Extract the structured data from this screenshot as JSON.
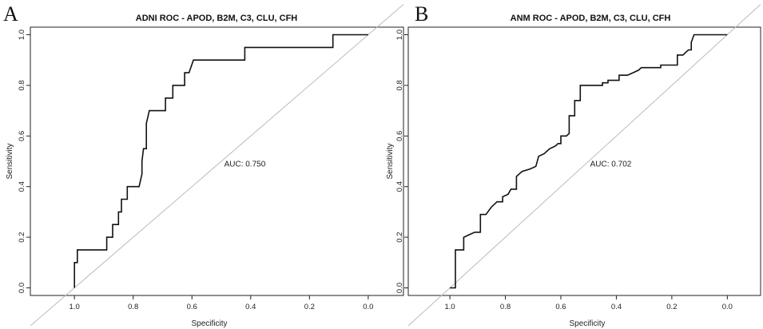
{
  "chart_data": [
    {
      "panel": "A",
      "type": "line",
      "title": "ADNI ROC - APOD, B2M, C3, CLU, CFH",
      "xlabel": "Specificity",
      "ylabel": "Sensitivity",
      "xlim": [
        1.15,
        -0.12
      ],
      "ylim": [
        -0.03,
        1.03
      ],
      "xticks": [
        1.0,
        0.8,
        0.6,
        0.4,
        0.2,
        0.0
      ],
      "xtick_labels": [
        "1.0",
        "0.8",
        "0.6",
        "0.4",
        "0.2",
        "0.0"
      ],
      "yticks": [
        0.0,
        0.2,
        0.4,
        0.6,
        0.8,
        1.0
      ],
      "ytick_labels": [
        "0.0",
        "0.2",
        "0.4",
        "0.6",
        "0.8",
        "1.0"
      ],
      "auc_label": "AUC: 0.750",
      "auc_position": {
        "specificity": 0.42,
        "sensitivity": 0.48
      },
      "diagonal": true,
      "series": [
        {
          "name": "ROC",
          "points": [
            [
              1.0,
              0.0
            ],
            [
              1.0,
              0.1
            ],
            [
              0.99,
              0.1
            ],
            [
              0.99,
              0.15
            ],
            [
              0.89,
              0.15
            ],
            [
              0.89,
              0.2
            ],
            [
              0.87,
              0.2
            ],
            [
              0.87,
              0.25
            ],
            [
              0.85,
              0.25
            ],
            [
              0.85,
              0.3
            ],
            [
              0.84,
              0.3
            ],
            [
              0.84,
              0.35
            ],
            [
              0.82,
              0.35
            ],
            [
              0.82,
              0.4
            ],
            [
              0.78,
              0.4
            ],
            [
              0.77,
              0.45
            ],
            [
              0.77,
              0.5
            ],
            [
              0.765,
              0.55
            ],
            [
              0.755,
              0.55
            ],
            [
              0.755,
              0.65
            ],
            [
              0.745,
              0.7
            ],
            [
              0.69,
              0.7
            ],
            [
              0.69,
              0.75
            ],
            [
              0.665,
              0.75
            ],
            [
              0.665,
              0.8
            ],
            [
              0.625,
              0.8
            ],
            [
              0.625,
              0.85
            ],
            [
              0.61,
              0.85
            ],
            [
              0.595,
              0.9
            ],
            [
              0.42,
              0.9
            ],
            [
              0.42,
              0.95
            ],
            [
              0.12,
              0.95
            ],
            [
              0.12,
              1.0
            ],
            [
              0.0,
              1.0
            ]
          ]
        }
      ]
    },
    {
      "panel": "B",
      "type": "line",
      "title": "ANM ROC - APOD, B2M, C3, CLU, CFH",
      "xlabel": "Specificity",
      "ylabel": "Sensitivity",
      "xlim": [
        1.15,
        -0.12
      ],
      "ylim": [
        -0.03,
        1.03
      ],
      "xticks": [
        1.0,
        0.8,
        0.6,
        0.4,
        0.2,
        0.0
      ],
      "xtick_labels": [
        "1.0",
        "0.8",
        "0.6",
        "0.4",
        "0.2",
        "0.0"
      ],
      "yticks": [
        0.0,
        0.2,
        0.4,
        0.6,
        0.8,
        1.0
      ],
      "ytick_labels": [
        "0.0",
        "0.2",
        "0.4",
        "0.6",
        "0.8",
        "1.0"
      ],
      "auc_label": "AUC: 0.702",
      "auc_position": {
        "specificity": 0.42,
        "sensitivity": 0.48
      },
      "diagonal": true,
      "series": [
        {
          "name": "ROC",
          "points": [
            [
              1.0,
              0.0
            ],
            [
              0.98,
              0.0
            ],
            [
              0.98,
              0.15
            ],
            [
              0.95,
              0.15
            ],
            [
              0.95,
              0.2
            ],
            [
              0.93,
              0.21
            ],
            [
              0.91,
              0.22
            ],
            [
              0.89,
              0.22
            ],
            [
              0.89,
              0.29
            ],
            [
              0.87,
              0.29
            ],
            [
              0.85,
              0.32
            ],
            [
              0.83,
              0.34
            ],
            [
              0.81,
              0.34
            ],
            [
              0.81,
              0.36
            ],
            [
              0.79,
              0.37
            ],
            [
              0.78,
              0.39
            ],
            [
              0.76,
              0.39
            ],
            [
              0.76,
              0.44
            ],
            [
              0.74,
              0.46
            ],
            [
              0.71,
              0.47
            ],
            [
              0.69,
              0.48
            ],
            [
              0.68,
              0.52
            ],
            [
              0.66,
              0.53
            ],
            [
              0.64,
              0.55
            ],
            [
              0.62,
              0.56
            ],
            [
              0.61,
              0.57
            ],
            [
              0.6,
              0.57
            ],
            [
              0.6,
              0.6
            ],
            [
              0.58,
              0.6
            ],
            [
              0.57,
              0.61
            ],
            [
              0.57,
              0.68
            ],
            [
              0.55,
              0.68
            ],
            [
              0.55,
              0.74
            ],
            [
              0.53,
              0.74
            ],
            [
              0.53,
              0.8
            ],
            [
              0.45,
              0.8
            ],
            [
              0.45,
              0.81
            ],
            [
              0.43,
              0.81
            ],
            [
              0.43,
              0.82
            ],
            [
              0.39,
              0.82
            ],
            [
              0.39,
              0.84
            ],
            [
              0.36,
              0.84
            ],
            [
              0.34,
              0.85
            ],
            [
              0.32,
              0.86
            ],
            [
              0.31,
              0.87
            ],
            [
              0.24,
              0.87
            ],
            [
              0.24,
              0.88
            ],
            [
              0.18,
              0.88
            ],
            [
              0.18,
              0.92
            ],
            [
              0.16,
              0.92
            ],
            [
              0.15,
              0.93
            ],
            [
              0.14,
              0.94
            ],
            [
              0.13,
              0.94
            ],
            [
              0.13,
              0.97
            ],
            [
              0.12,
              1.0
            ],
            [
              0.0,
              1.0
            ]
          ]
        }
      ]
    }
  ]
}
